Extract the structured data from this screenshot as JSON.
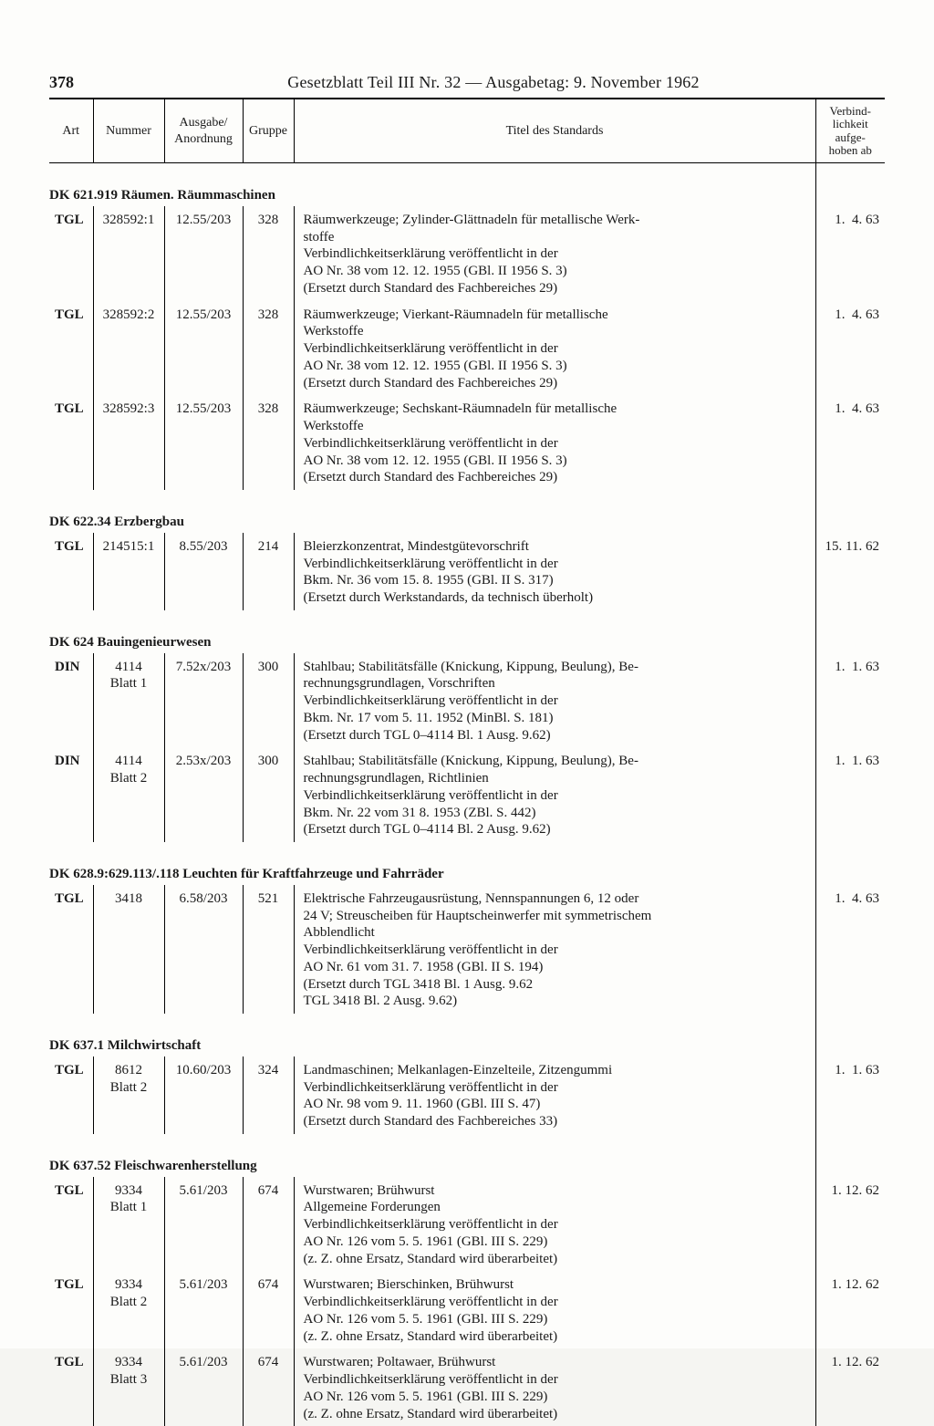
{
  "page_number": "378",
  "header_title": "Gesetzblatt Teil III Nr. 32 — Ausgabetag: 9. November 1962",
  "columns": {
    "art": "Art",
    "nummer": "Nummer",
    "ausgabe": "Ausgabe/\nAnordnung",
    "gruppe": "Gruppe",
    "titel": "Titel des Standards",
    "date": "Verbind-\nlichkeit\naufge-\nhoben ab"
  },
  "sections": [
    {
      "heading": "DK 621.919 Räumen. Räummaschinen",
      "rows": [
        {
          "art": "TGL",
          "nummer": "328592:1",
          "ausgabe": "12.55/203",
          "gruppe": "328",
          "titel": "Räumwerkzeuge; Zylinder-Glättnadeln für metallische Werk-\nstoffe\nVerbindlichkeitserklärung veröffentlicht in der\nAO Nr. 38 vom 12. 12. 1955 (GBl. II 1956 S. 3)\n(Ersetzt durch Standard des Fachbereiches 29)",
          "date": "1.  4. 63"
        },
        {
          "art": "TGL",
          "nummer": "328592:2",
          "ausgabe": "12.55/203",
          "gruppe": "328",
          "titel": "Räumwerkzeuge; Vierkant-Räumnadeln für metallische\nWerkstoffe\nVerbindlichkeitserklärung veröffentlicht in der\nAO Nr. 38 vom 12. 12. 1955 (GBl. II 1956 S. 3)\n(Ersetzt durch Standard des Fachbereiches 29)",
          "date": "1.  4. 63"
        },
        {
          "art": "TGL",
          "nummer": "328592:3",
          "ausgabe": "12.55/203",
          "gruppe": "328",
          "titel": "Räumwerkzeuge; Sechskant-Räumnadeln für metallische\nWerkstoffe\nVerbindlichkeitserklärung veröffentlicht in der\nAO Nr. 38 vom 12. 12. 1955 (GBl. II 1956 S. 3)\n(Ersetzt durch Standard des Fachbereiches 29)",
          "date": "1.  4. 63"
        }
      ]
    },
    {
      "heading": "DK 622.34 Erzbergbau",
      "rows": [
        {
          "art": "TGL",
          "nummer": "214515:1",
          "ausgabe": "8.55/203",
          "gruppe": "214",
          "titel": "Bleierzkonzentrat, Mindestgütevorschrift\nVerbindlichkeitserklärung veröffentlicht in der\nBkm. Nr. 36 vom 15. 8. 1955 (GBl. II S. 317)\n(Ersetzt durch Werkstandards, da technisch überholt)",
          "date": "15. 11. 62"
        }
      ]
    },
    {
      "heading": "DK 624 Bauingenieurwesen",
      "rows": [
        {
          "art": "DIN",
          "nummer": "4114\nBlatt 1",
          "ausgabe": "7.52x/203",
          "gruppe": "300",
          "titel": "Stahlbau; Stabilitätsfälle (Knickung, Kippung, Beulung), Be-\nrechnungsgrundlagen, Vorschriften\nVerbindlichkeitserklärung veröffentlicht in der\nBkm. Nr. 17 vom 5. 11. 1952 (MinBl. S. 181)\n(Ersetzt durch TGL 0–4114 Bl. 1 Ausg. 9.62)",
          "date": "1.  1. 63"
        },
        {
          "art": "DIN",
          "nummer": "4114\nBlatt 2",
          "ausgabe": "2.53x/203",
          "gruppe": "300",
          "titel": "Stahlbau; Stabilitätsfälle (Knickung, Kippung, Beulung), Be-\nrechnungsgrundlagen, Richtlinien\nVerbindlichkeitserklärung veröffentlicht in der\nBkm. Nr. 22 vom 31  8. 1953 (ZBl. S. 442)\n(Ersetzt durch TGL 0–4114 Bl. 2 Ausg. 9.62)",
          "date": "1.  1. 63"
        }
      ]
    },
    {
      "heading": "DK 628.9:629.113/.118 Leuchten für Kraftfahrzeuge und Fahrräder",
      "rows": [
        {
          "art": "TGL",
          "nummer": "3418",
          "ausgabe": "6.58/203",
          "gruppe": "521",
          "titel": "Elektrische Fahrzeugausrüstung, Nennspannungen 6, 12 oder\n24 V; Streuscheiben für Hauptscheinwerfer mit symmetrischem\nAbblendlicht\nVerbindlichkeitserklärung veröffentlicht in der\nAO Nr. 61 vom 31. 7. 1958 (GBl. II S. 194)\n(Ersetzt durch TGL 3418 Bl. 1 Ausg. 9.62\n                          TGL 3418 Bl. 2 Ausg. 9.62)",
          "date": "1.  4. 63"
        }
      ]
    },
    {
      "heading": "DK 637.1 Milchwirtschaft",
      "rows": [
        {
          "art": "TGL",
          "nummer": "8612\nBlatt 2",
          "ausgabe": "10.60/203",
          "gruppe": "324",
          "titel": "Landmaschinen; Melkanlagen-Einzelteile, Zitzengummi\nVerbindlichkeitserklärung veröffentlicht in der\nAO Nr. 98 vom 9. 11. 1960 (GBl. III S. 47)\n(Ersetzt durch Standard des Fachbereiches 33)",
          "date": "1.  1. 63"
        }
      ]
    },
    {
      "heading": "DK 637.52 Fleischwarenherstellung",
      "rows": [
        {
          "art": "TGL",
          "nummer": "9334\nBlatt 1",
          "ausgabe": "5.61/203",
          "gruppe": "674",
          "titel": "Wurstwaren; Brühwurst\nAllgemeine Forderungen\nVerbindlichkeitserklärung veröffentlicht in der\nAO Nr. 126 vom 5. 5. 1961 (GBl. III S. 229)\n(z. Z. ohne Ersatz, Standard wird überarbeitet)",
          "date": "1. 12. 62"
        },
        {
          "art": "TGL",
          "nummer": "9334\nBlatt 2",
          "ausgabe": "5.61/203",
          "gruppe": "674",
          "titel": "Wurstwaren; Bierschinken, Brühwurst\nVerbindlichkeitserklärung veröffentlicht in der\nAO Nr. 126 vom 5. 5. 1961 (GBl. III S. 229)\n(z. Z. ohne Ersatz, Standard wird überarbeitet)",
          "date": "1. 12. 62"
        },
        {
          "art": "TGL",
          "nummer": "9334\nBlatt 3",
          "ausgabe": "5.61/203",
          "gruppe": "674",
          "titel": "Wurstwaren; Poltawaer, Brühwurst\nVerbindlichkeitserklärung veröffentlicht in der\nAO Nr. 126 vom 5. 5. 1961 (GBl. III S. 229)\n(z. Z. ohne Ersatz, Standard wird überarbeitet)",
          "date": "1. 12. 62"
        }
      ]
    }
  ]
}
